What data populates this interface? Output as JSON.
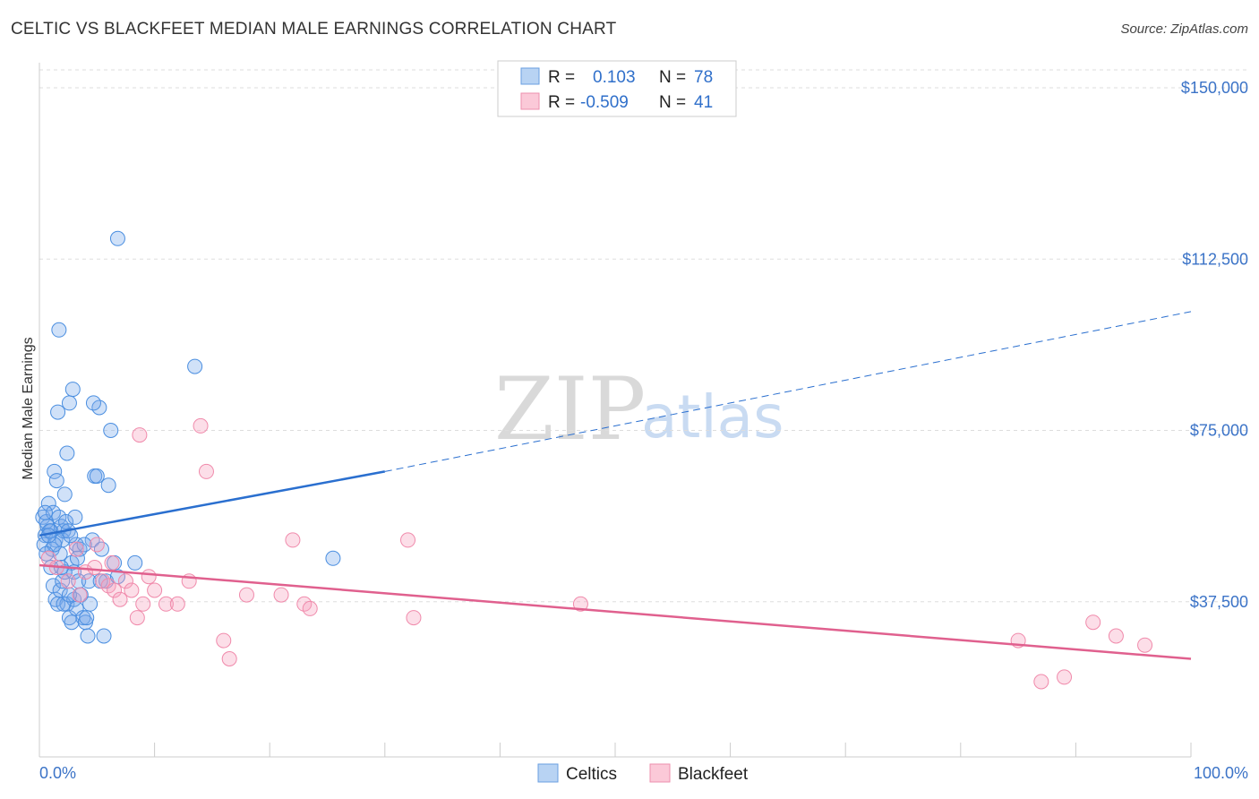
{
  "header": {
    "title": "CELTIC VS BLACKFEET MEDIAN MALE EARNINGS CORRELATION CHART",
    "source": "Source: ZipAtlas.com"
  },
  "watermark": {
    "zip": "ZIP",
    "atlas": "atlas"
  },
  "colors": {
    "celtics": "#4a8ee0",
    "celtics_line": "#2a6fcf",
    "blackfeet": "#f08aab",
    "blackfeet_line": "#e0608e",
    "axis_text": "#3b73c7",
    "grid": "#dddddd"
  },
  "legend": {
    "rows": [
      {
        "r_label": "R =",
        "r_value": "0.103",
        "n_label": "N =",
        "n_value": "78"
      },
      {
        "r_label": "R =",
        "r_value": "-0.509",
        "n_label": "N =",
        "n_value": "41"
      }
    ]
  },
  "bottom_legend": {
    "items": [
      "Celtics",
      "Blackfeet"
    ]
  },
  "chart_data": {
    "type": "scatter",
    "title": "CELTIC VS BLACKFEET MEDIAN MALE EARNINGS CORRELATION CHART",
    "xlabel": "",
    "ylabel": "Median Male Earnings",
    "xlim": [
      0,
      100
    ],
    "ylim": [
      0,
      155000
    ],
    "x_tick_labels": [
      "0.0%",
      "100.0%"
    ],
    "y_ticks": [
      37500,
      75000,
      112500,
      150000
    ],
    "y_tick_labels": [
      "$37,500",
      "$75,000",
      "$112,500",
      "$150,000"
    ],
    "grid": true,
    "series": [
      {
        "name": "Celtics",
        "points": [
          [
            0.3,
            56000
          ],
          [
            0.5,
            52000
          ],
          [
            0.7,
            54000
          ],
          [
            0.4,
            50000
          ],
          [
            0.8,
            59000
          ],
          [
            0.6,
            55000
          ],
          [
            1.0,
            53000
          ],
          [
            1.2,
            57000
          ],
          [
            1.4,
            51000
          ],
          [
            1.1,
            49000
          ],
          [
            1.3,
            66000
          ],
          [
            1.5,
            64000
          ],
          [
            1.7,
            56000
          ],
          [
            1.9,
            54000
          ],
          [
            2.1,
            53000
          ],
          [
            2.0,
            51000
          ],
          [
            2.3,
            55000
          ],
          [
            2.5,
            53000
          ],
          [
            2.2,
            61000
          ],
          [
            2.4,
            70000
          ],
          [
            2.6,
            81000
          ],
          [
            2.8,
            46000
          ],
          [
            3.0,
            44000
          ],
          [
            3.2,
            50000
          ],
          [
            1.2,
            41000
          ],
          [
            1.4,
            38000
          ],
          [
            1.6,
            37000
          ],
          [
            1.8,
            40000
          ],
          [
            2.0,
            42000
          ],
          [
            2.2,
            44000
          ],
          [
            2.4,
            37000
          ],
          [
            2.6,
            34000
          ],
          [
            2.8,
            33000
          ],
          [
            3.0,
            38000
          ],
          [
            3.2,
            36000
          ],
          [
            3.4,
            42000
          ],
          [
            3.6,
            39000
          ],
          [
            3.8,
            34000
          ],
          [
            4.0,
            33000
          ],
          [
            4.2,
            30000
          ],
          [
            4.4,
            37000
          ],
          [
            4.6,
            51000
          ],
          [
            4.8,
            65000
          ],
          [
            5.0,
            65000
          ],
          [
            5.2,
            80000
          ],
          [
            5.4,
            49000
          ],
          [
            5.6,
            30000
          ],
          [
            5.8,
            42000
          ],
          [
            6.0,
            63000
          ],
          [
            6.2,
            75000
          ],
          [
            6.5,
            46000
          ],
          [
            6.8,
            43000
          ],
          [
            1.6,
            79000
          ],
          [
            2.9,
            84000
          ],
          [
            4.7,
            81000
          ],
          [
            1.7,
            97000
          ],
          [
            6.8,
            117000
          ],
          [
            8.3,
            46000
          ],
          [
            13.5,
            89000
          ],
          [
            25.5,
            47000
          ],
          [
            1.0,
            45000
          ],
          [
            1.8,
            48000
          ],
          [
            0.9,
            53000
          ],
          [
            2.7,
            52000
          ],
          [
            3.5,
            49000
          ],
          [
            0.5,
            57000
          ],
          [
            3.9,
            50000
          ],
          [
            4.3,
            42000
          ],
          [
            1.3,
            50000
          ],
          [
            2.1,
            37000
          ],
          [
            3.3,
            47000
          ],
          [
            0.8,
            52000
          ],
          [
            1.9,
            45000
          ],
          [
            2.6,
            39000
          ],
          [
            0.6,
            48000
          ],
          [
            3.1,
            56000
          ],
          [
            4.1,
            34000
          ],
          [
            5.3,
            42000
          ]
        ]
      },
      {
        "name": "Blackfeet",
        "points": [
          [
            0.8,
            47000
          ],
          [
            1.5,
            45000
          ],
          [
            2.5,
            42000
          ],
          [
            3.2,
            49000
          ],
          [
            4.0,
            44000
          ],
          [
            4.8,
            45000
          ],
          [
            5.5,
            42000
          ],
          [
            6.0,
            41000
          ],
          [
            6.5,
            40000
          ],
          [
            7.0,
            38000
          ],
          [
            7.5,
            42000
          ],
          [
            8.0,
            40000
          ],
          [
            8.5,
            34000
          ],
          [
            9.0,
            37000
          ],
          [
            9.5,
            43000
          ],
          [
            10.0,
            40000
          ],
          [
            11.0,
            37000
          ],
          [
            12.0,
            37000
          ],
          [
            13.0,
            42000
          ],
          [
            14.0,
            76000
          ],
          [
            14.5,
            66000
          ],
          [
            16.0,
            29000
          ],
          [
            16.5,
            25000
          ],
          [
            18.0,
            39000
          ],
          [
            21.0,
            39000
          ],
          [
            22.0,
            51000
          ],
          [
            23.0,
            37000
          ],
          [
            23.5,
            36000
          ],
          [
            32.0,
            51000
          ],
          [
            32.5,
            34000
          ],
          [
            47.0,
            37000
          ],
          [
            85.0,
            29000
          ],
          [
            87.0,
            20000
          ],
          [
            89.0,
            21000
          ],
          [
            91.5,
            33000
          ],
          [
            93.5,
            30000
          ],
          [
            96.0,
            28000
          ],
          [
            8.7,
            74000
          ],
          [
            6.3,
            46000
          ],
          [
            3.5,
            39000
          ],
          [
            5.0,
            50000
          ]
        ]
      }
    ],
    "trend_lines": [
      {
        "series": "Celtics",
        "x": [
          0,
          30
        ],
        "y": [
          52000,
          66000
        ],
        "extended_to": [
          100,
          101000
        ]
      },
      {
        "series": "Blackfeet",
        "x": [
          0,
          100
        ],
        "y": [
          45500,
          25000
        ]
      }
    ]
  }
}
